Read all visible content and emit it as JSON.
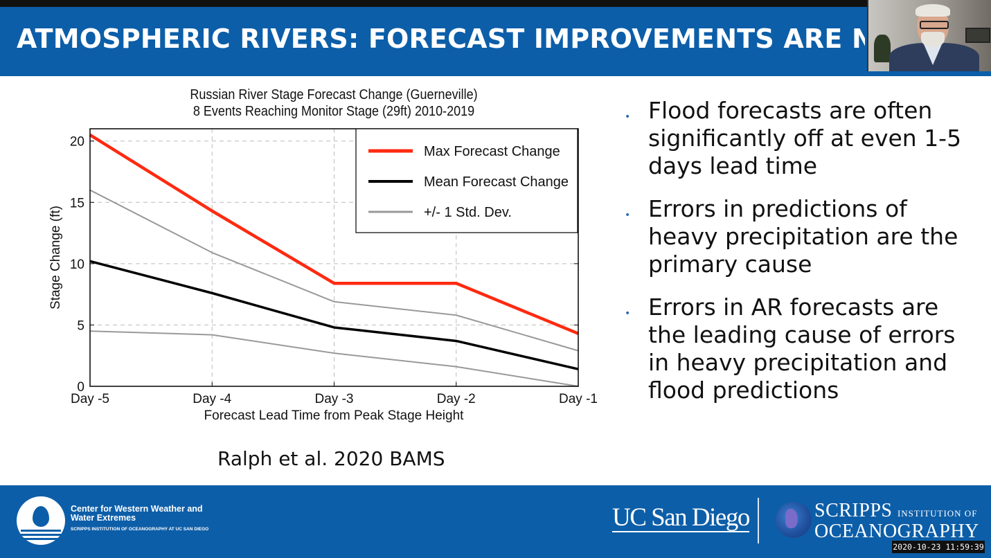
{
  "header": {
    "title": "ATMOSPHERIC RIVERS:  FORECAST IMPROVEMENTS ARE NEEDED"
  },
  "chart_data": {
    "type": "line",
    "title": "Russian River Stage Forecast Change (Guerneville)",
    "subtitle": "8 Events Reaching Monitor Stage (29ft) 2010-2019",
    "xlabel": "Forecast Lead Time from Peak Stage Height",
    "ylabel": "Stage Change (ft)",
    "categories": [
      "Day -5",
      "Day -4",
      "Day -3",
      "Day -2",
      "Day -1"
    ],
    "yticks": [
      0,
      5,
      10,
      15,
      20
    ],
    "ylim": [
      0,
      21
    ],
    "grid": true,
    "legend_position": "top-right",
    "series": [
      {
        "name": "Max Forecast Change",
        "color": "#ff2a10",
        "values": [
          20.5,
          14.3,
          8.4,
          8.4,
          4.3
        ]
      },
      {
        "name": "Mean Forecast Change",
        "color": "#000000",
        "values": [
          10.2,
          7.6,
          4.8,
          3.7,
          1.4
        ]
      },
      {
        "name": "+/- 1 Std. Dev.",
        "color": "#999999",
        "values": [
          16.0,
          10.9,
          6.9,
          5.8,
          2.9
        ]
      },
      {
        "name": "",
        "color": "#999999",
        "values": [
          4.5,
          4.2,
          2.7,
          1.6,
          0.0
        ]
      }
    ]
  },
  "bullets": [
    "Flood forecasts are often significantly off at even 1-5 days lead time",
    "Errors in predictions of heavy precipitation are the primary cause",
    "Errors in AR forecasts are the leading cause of errors in heavy precipitation and flood predictions"
  ],
  "citation": "Ralph et al. 2020 BAMS",
  "footer": {
    "cw3e_name": "Center for Western Weather and Water Extremes",
    "cw3e_sub": "SCRIPPS INSTITUTION OF OCEANOGRAPHY AT UC SAN DIEGO",
    "ucsd": "UC San Diego",
    "scripps_line1": "SCRIPPS",
    "scripps_small": "INSTITUTION OF",
    "scripps_line2": "OCEANOGRAPHY",
    "timestamp": "2020-10-23  11:59:39"
  }
}
